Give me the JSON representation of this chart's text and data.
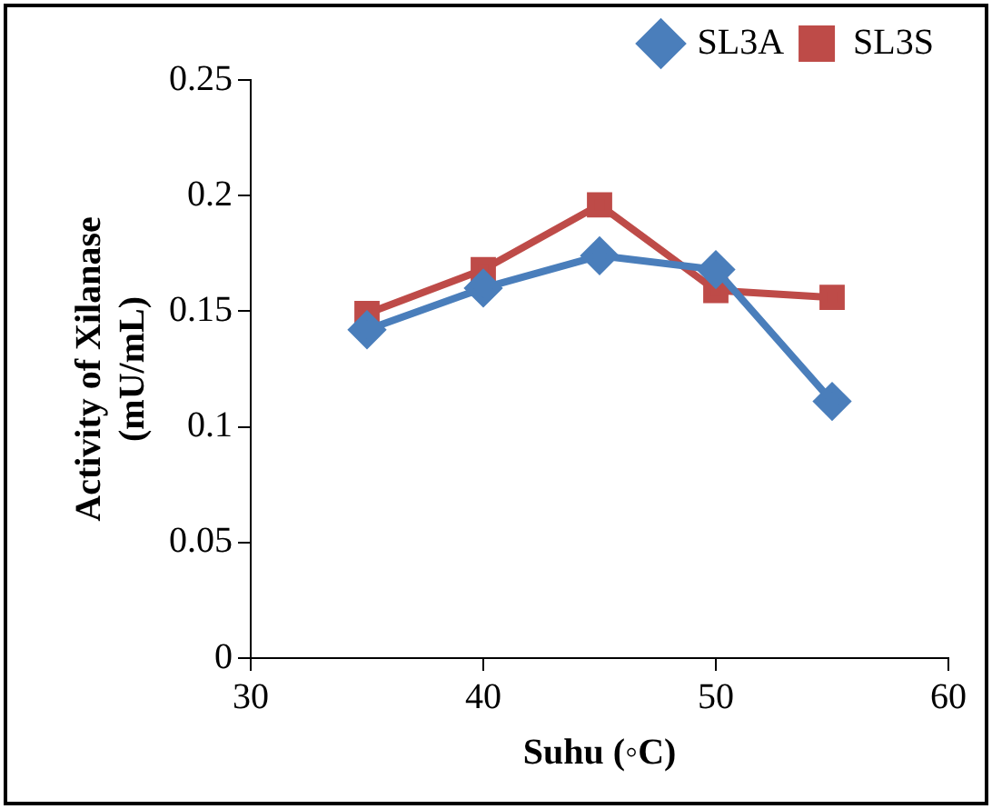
{
  "chart_data": {
    "type": "line",
    "xlabel": "Suhu (◦C)",
    "ylabel": "Activity of Xilanase\n(mU/mL)",
    "x": [
      35,
      40,
      45,
      50,
      55
    ],
    "series": [
      {
        "name": "SL3A",
        "color": "#4a7ebb",
        "marker": "diamond",
        "values": [
          0.142,
          0.16,
          0.174,
          0.168,
          0.111
        ]
      },
      {
        "name": "SL3S",
        "color": "#be4b48",
        "marker": "square",
        "values": [
          0.149,
          0.168,
          0.196,
          0.159,
          0.156
        ]
      }
    ],
    "xlim": [
      30,
      60
    ],
    "xticks": [
      30,
      40,
      50,
      60
    ],
    "ylim": [
      0,
      0.25
    ],
    "yticks": [
      0,
      0.05,
      0.1,
      0.15,
      0.2,
      0.25
    ],
    "grid": false,
    "legend": "top right",
    "line_style": "solid"
  }
}
